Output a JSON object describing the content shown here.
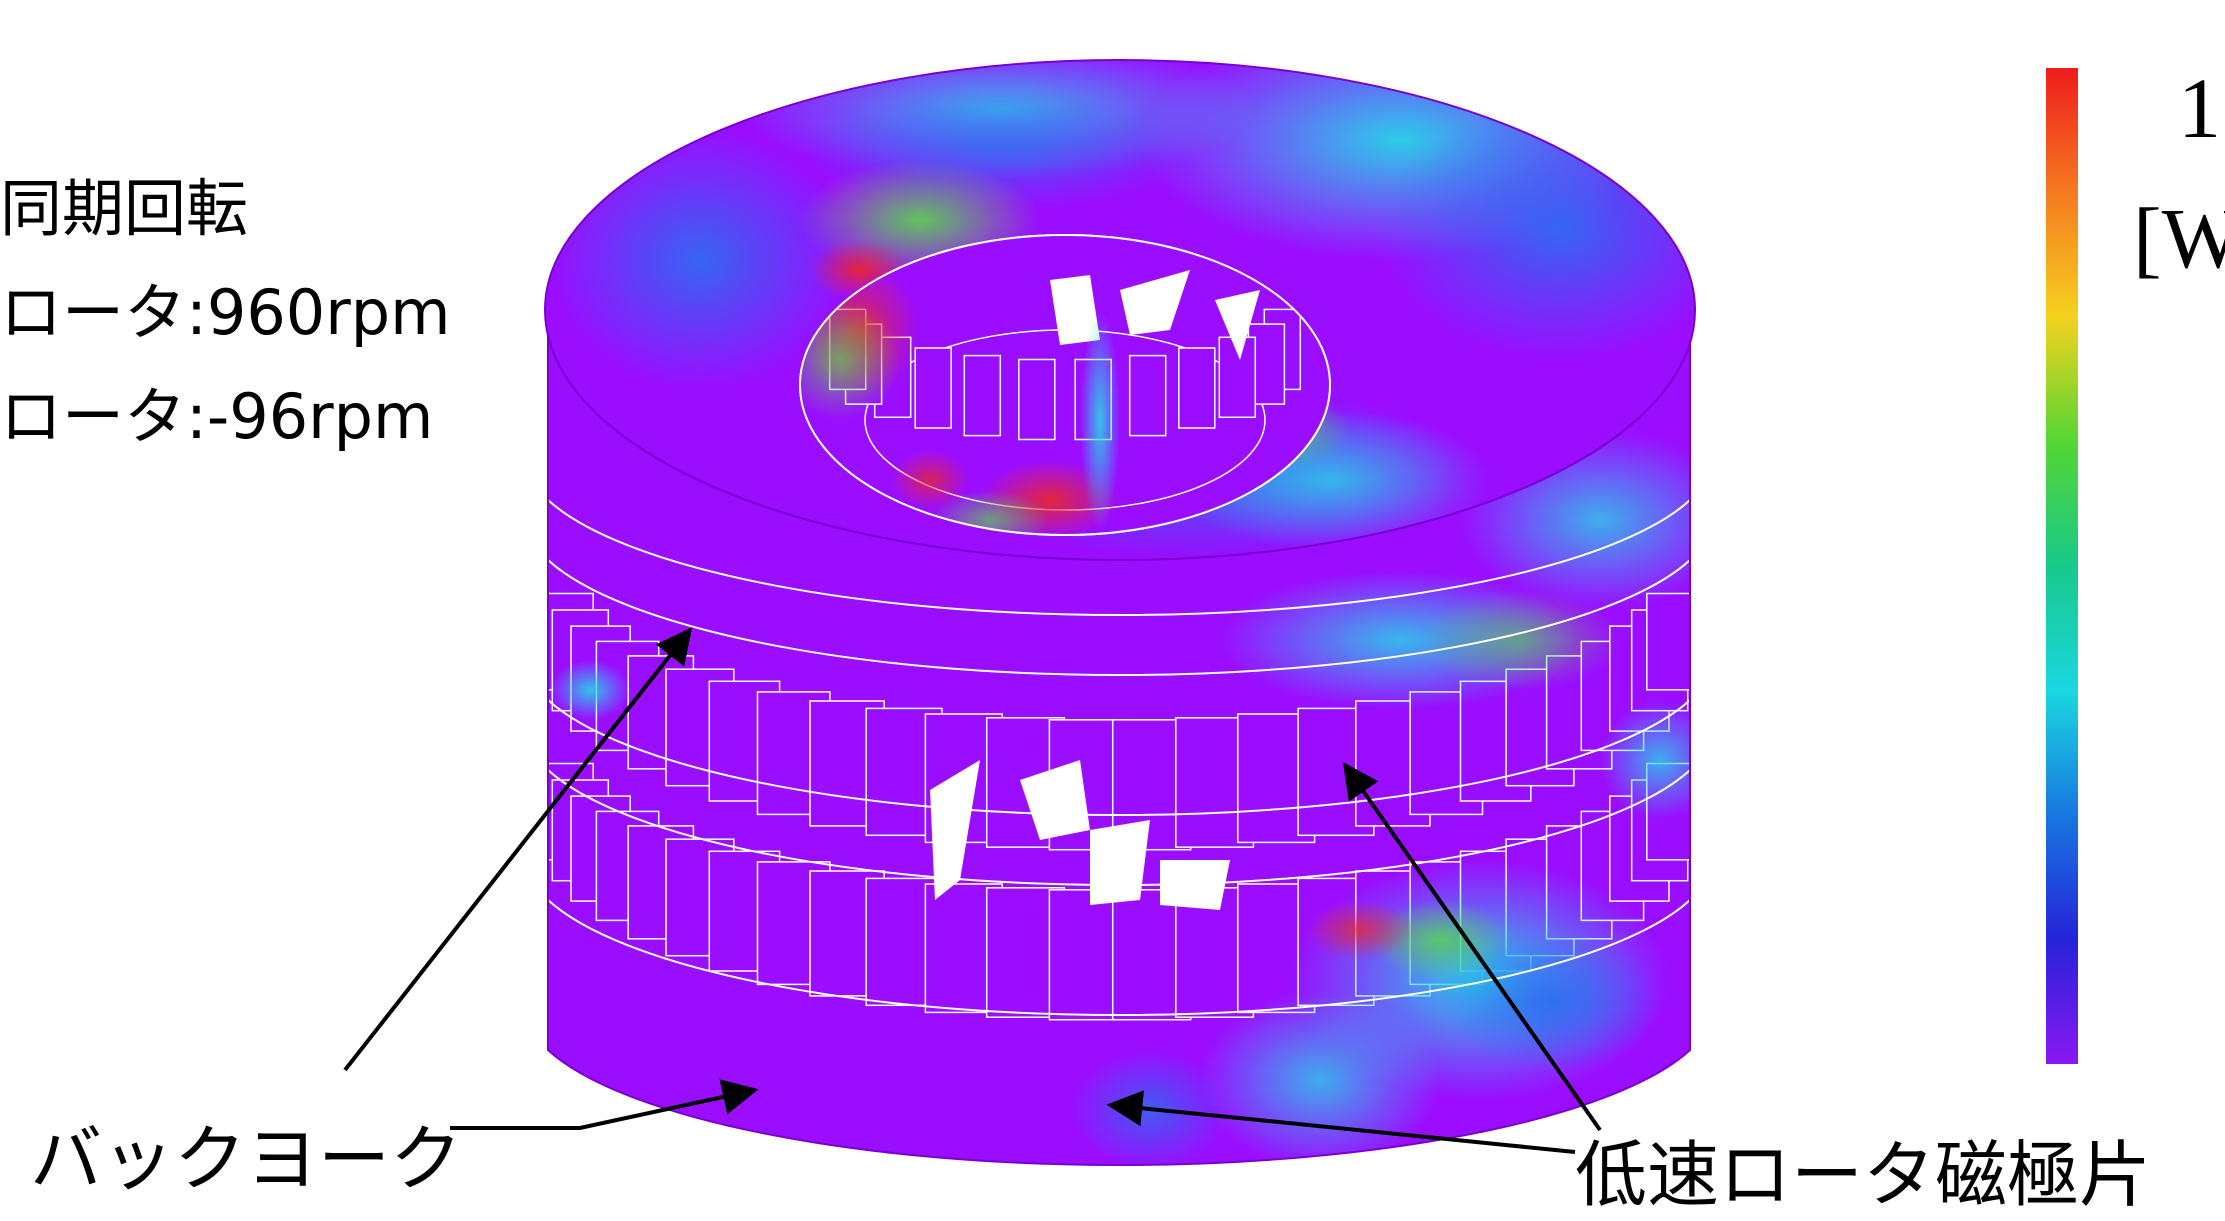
{
  "conditions": {
    "title": "同期回転",
    "high_speed": "ロータ:960rpm",
    "low_speed": "ロータ:-96rpm"
  },
  "colorbar": {
    "top_label": "1",
    "unit_label": "[W",
    "colors": [
      "#ee1c1c",
      "#f57a20",
      "#f5d21e",
      "#55d632",
      "#18c98a",
      "#1ad7e0",
      "#1877e0",
      "#2424d8",
      "#8a18f2"
    ]
  },
  "callouts": {
    "back_yoke": "バックヨーク",
    "low_speed_pole": "低速ロータ磁極片"
  },
  "colors": {
    "base": "#9a0dff",
    "cyan": "#26d6e8",
    "blue": "#2a6ff0",
    "green": "#5ad84a",
    "red": "#f02a1a",
    "yellow": "#f2d21e"
  }
}
